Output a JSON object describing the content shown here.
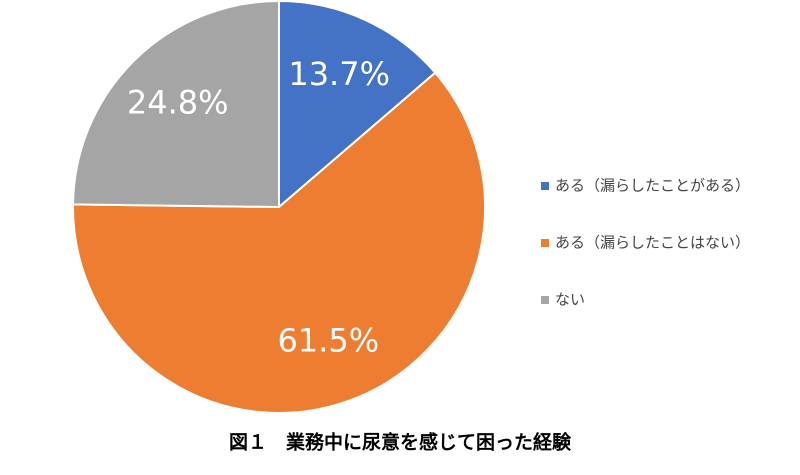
{
  "chart_data": {
    "type": "pie",
    "title": "図１　業務中に尿意を感じて困った経験",
    "categories": [
      "ある（漏らしたことがある）",
      "ある（漏らしたことはない）",
      "ない"
    ],
    "values": [
      13.7,
      61.5,
      24.8
    ],
    "value_labels": [
      "13.7%",
      "61.5%",
      "24.8%"
    ],
    "colors": [
      "#4472c4",
      "#ed7d31",
      "#a5a5a5"
    ],
    "legend": "right"
  }
}
